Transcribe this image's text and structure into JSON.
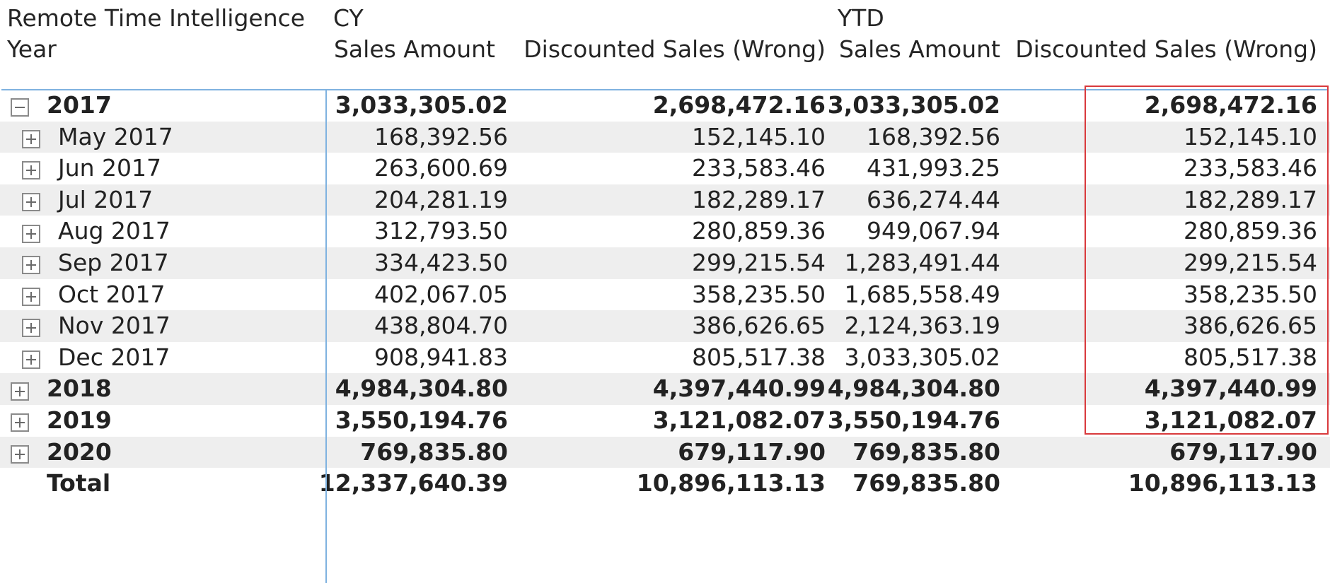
{
  "headers": {
    "corner_title": "Remote Time Intelligence",
    "row_field": "Year",
    "group_cy": "CY",
    "group_ytd": "YTD",
    "col_sales": "Sales Amount",
    "col_discounted": "Discounted Sales (Wrong)"
  },
  "rows": [
    {
      "label": "2017",
      "expand": "collapse",
      "cy_sales": "3,033,305.02",
      "cy_disc": "2,698,472.16",
      "ytd_sales": "3,033,305.02",
      "ytd_disc": "2,698,472.16"
    },
    {
      "label": "May 2017",
      "expand": "expand",
      "cy_sales": "168,392.56",
      "cy_disc": "152,145.10",
      "ytd_sales": "168,392.56",
      "ytd_disc": "152,145.10"
    },
    {
      "label": "Jun 2017",
      "expand": "expand",
      "cy_sales": "263,600.69",
      "cy_disc": "233,583.46",
      "ytd_sales": "431,993.25",
      "ytd_disc": "233,583.46"
    },
    {
      "label": "Jul 2017",
      "expand": "expand",
      "cy_sales": "204,281.19",
      "cy_disc": "182,289.17",
      "ytd_sales": "636,274.44",
      "ytd_disc": "182,289.17"
    },
    {
      "label": "Aug 2017",
      "expand": "expand",
      "cy_sales": "312,793.50",
      "cy_disc": "280,859.36",
      "ytd_sales": "949,067.94",
      "ytd_disc": "280,859.36"
    },
    {
      "label": "Sep 2017",
      "expand": "expand",
      "cy_sales": "334,423.50",
      "cy_disc": "299,215.54",
      "ytd_sales": "1,283,491.44",
      "ytd_disc": "299,215.54"
    },
    {
      "label": "Oct 2017",
      "expand": "expand",
      "cy_sales": "402,067.05",
      "cy_disc": "358,235.50",
      "ytd_sales": "1,685,558.49",
      "ytd_disc": "358,235.50"
    },
    {
      "label": "Nov 2017",
      "expand": "expand",
      "cy_sales": "438,804.70",
      "cy_disc": "386,626.65",
      "ytd_sales": "2,124,363.19",
      "ytd_disc": "386,626.65"
    },
    {
      "label": "Dec 2017",
      "expand": "expand",
      "cy_sales": "908,941.83",
      "cy_disc": "805,517.38",
      "ytd_sales": "3,033,305.02",
      "ytd_disc": "805,517.38"
    },
    {
      "label": "2018",
      "expand": "expand",
      "cy_sales": "4,984,304.80",
      "cy_disc": "4,397,440.99",
      "ytd_sales": "4,984,304.80",
      "ytd_disc": "4,397,440.99"
    },
    {
      "label": "2019",
      "expand": "expand",
      "cy_sales": "3,550,194.76",
      "cy_disc": "3,121,082.07",
      "ytd_sales": "3,550,194.76",
      "ytd_disc": "3,121,082.07"
    },
    {
      "label": "2020",
      "expand": "expand",
      "cy_sales": "769,835.80",
      "cy_disc": "679,117.90",
      "ytd_sales": "769,835.80",
      "ytd_disc": "679,117.90"
    },
    {
      "label": "Total",
      "expand": "none",
      "cy_sales": "12,337,640.39",
      "cy_disc": "10,896,113.13",
      "ytd_sales": "769,835.80",
      "ytd_disc": "10,896,113.13"
    }
  ],
  "colors": {
    "divider": "#7fb2e0",
    "row_shade": "#eeeeee",
    "highlight_box": "#d9393c"
  }
}
